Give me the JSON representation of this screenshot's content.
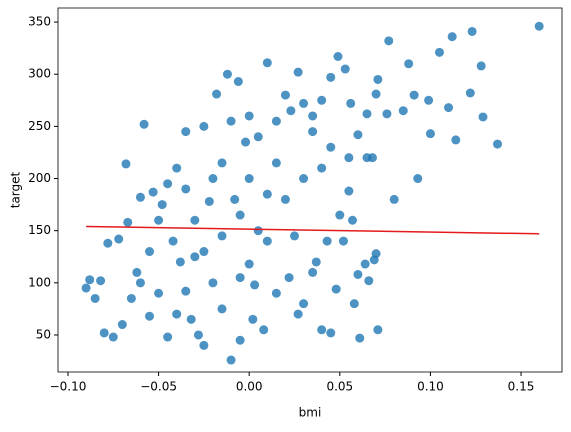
{
  "chart_data": {
    "type": "scatter",
    "x_label": "bmi",
    "y_label": "target",
    "color": "#1f77b4",
    "x": [
      0.16,
      0.123,
      0.128,
      0.105,
      0.112,
      0.077,
      0.088,
      0.091,
      0.099,
      0.11,
      0.114,
      0.122,
      0.137,
      0.129,
      0.093,
      0.08,
      0.1,
      0.085,
      0.071,
      0.07,
      0.065,
      0.068,
      0.071,
      0.066,
      0.069,
      0.07,
      0.064,
      0.06,
      0.058,
      0.057,
      0.055,
      0.06,
      0.056,
      0.053,
      0.049,
      0.045,
      0.04,
      0.035,
      0.03,
      0.04,
      0.043,
      0.037,
      0.027,
      0.02,
      0.023,
      0.01,
      0.0,
      0.005,
      0.015,
      0.01,
      0.02,
      0.03,
      -0.005,
      0.005,
      0.01,
      0.025,
      0.035,
      0.03,
      0.04,
      0.015,
      0.002,
      -0.005,
      -0.01,
      -0.015,
      -0.02,
      -0.025,
      -0.03,
      -0.035,
      -0.04,
      -0.045,
      -0.05,
      -0.055,
      -0.06,
      -0.065,
      -0.07,
      -0.075,
      -0.08,
      -0.085,
      -0.09,
      -0.088,
      -0.082,
      -0.078,
      -0.072,
      -0.067,
      -0.06,
      -0.058,
      -0.053,
      -0.048,
      -0.042,
      -0.038,
      -0.035,
      -0.032,
      -0.028,
      -0.025,
      -0.02,
      -0.018,
      -0.015,
      -0.01,
      -0.012,
      -0.006,
      -0.002,
      0.0,
      -0.005,
      0.0,
      0.008,
      0.045,
      0.027,
      0.022,
      0.048,
      0.061,
      0.076,
      0.065,
      -0.068,
      -0.062,
      -0.045,
      -0.04,
      -0.03,
      -0.022,
      -0.05,
      -0.055,
      -0.035,
      -0.025,
      0.05,
      0.055,
      0.035,
      0.045,
      0.015,
      -0.008,
      0.003,
      -0.015,
      0.052
    ],
    "values": [
      346,
      341,
      308,
      321,
      336,
      332,
      310,
      280,
      275,
      268,
      237,
      282,
      233,
      259,
      200,
      180,
      243,
      265,
      295,
      281,
      262,
      220,
      55,
      102,
      122,
      128,
      118,
      108,
      80,
      160,
      188,
      242,
      272,
      305,
      317,
      297,
      275,
      260,
      272,
      210,
      140,
      120,
      302,
      280,
      265,
      311,
      260,
      240,
      215,
      185,
      180,
      200,
      165,
      150,
      140,
      145,
      110,
      80,
      55,
      90,
      65,
      45,
      26,
      75,
      100,
      130,
      160,
      190,
      210,
      195,
      160,
      130,
      100,
      85,
      60,
      48,
      52,
      85,
      95,
      103,
      102,
      138,
      142,
      158,
      182,
      252,
      187,
      175,
      140,
      120,
      92,
      65,
      50,
      40,
      200,
      281,
      215,
      255,
      300,
      293,
      235,
      200,
      105,
      118,
      55,
      52,
      70,
      105,
      94,
      47,
      262,
      220,
      214,
      110,
      48,
      70,
      125,
      178,
      90,
      68,
      245,
      250,
      165,
      220,
      245,
      230,
      255,
      180,
      98,
      145,
      140
    ],
    "line": {
      "x": [
        -0.09,
        0.16
      ],
      "values": [
        154,
        147
      ],
      "color": "#e41a1c"
    },
    "xlim": [
      -0.1055,
      0.1726
    ],
    "ylim": [
      14.5,
      363.5
    ],
    "xticks": [
      {
        "value": -0.1,
        "label": "−0.10"
      },
      {
        "value": -0.05,
        "label": "−0.05"
      },
      {
        "value": 0,
        "label": "0.00"
      },
      {
        "value": 0.05,
        "label": "0.05"
      },
      {
        "value": 0.1,
        "label": "0.10"
      },
      {
        "value": 0.15,
        "label": "0.15"
      }
    ],
    "yticks": [
      50,
      100,
      150,
      200,
      250,
      300,
      350
    ]
  }
}
